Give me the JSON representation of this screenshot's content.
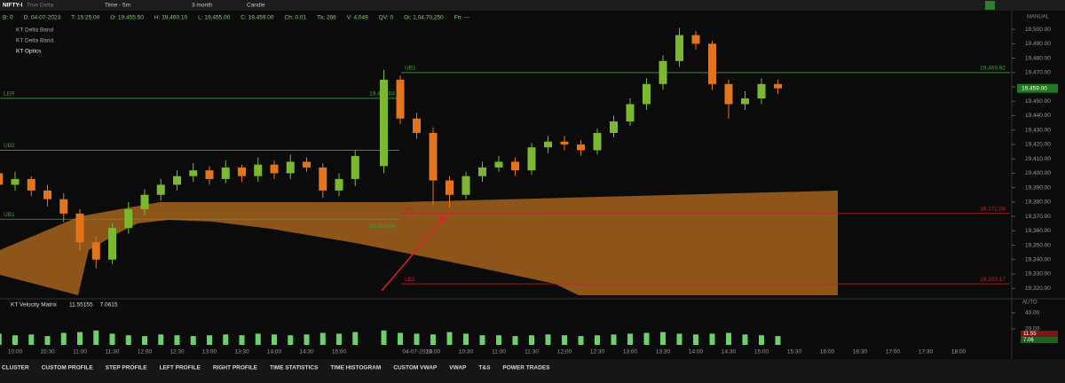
{
  "toolbar": {
    "symbol": "NIFTY-I",
    "sub": "True Delta",
    "timeframe": "Time - 5m",
    "range": "3 month",
    "style": "Candle"
  },
  "info_bar": [
    "B: 0",
    "D: 04-07-2023",
    "T: 15:25:00",
    "O: 19,455.50",
    "H: 19,460.10",
    "L: 19,455.00",
    "C: 19,459.00",
    "Ch: 0.01",
    "Tk: 266",
    "V: 4,049",
    "QV: 0",
    "Oi: 1,04,70,250",
    "Fn: ---"
  ],
  "indicators": [
    "KT Delta Band",
    "KT Delta Band",
    "KT Optics"
  ],
  "scale_mode": "MANUAL",
  "sub_scale_mode": "AUTO",
  "tabs": [
    "CLUSTER",
    "CUSTOM PROFILE",
    "STEP PROFILE",
    "LEFT PROFILE",
    "RIGHT PROFILE",
    "TIME STATISTICS",
    "TIME HISTOGRAM",
    "CUSTOM VWAP",
    "VWAP",
    "T&S",
    "POWER TRADES"
  ],
  "chart_data": {
    "type": "candlestick",
    "up_color": "#7cb82f",
    "down_color": "#e2741d",
    "ylim": [
      19314,
      19513
    ],
    "yticks": [
      {
        "value": 19320,
        "label": "19,320.00"
      },
      {
        "value": 19330,
        "label": "19,330.00"
      },
      {
        "value": 19340,
        "label": "19,340.00"
      },
      {
        "value": 19350,
        "label": "19,350.00"
      },
      {
        "value": 19360,
        "label": "19,360.00"
      },
      {
        "value": 19370,
        "label": "19,370.00"
      },
      {
        "value": 19380,
        "label": "19,380.00"
      },
      {
        "value": 19390,
        "label": "19,390.00"
      },
      {
        "value": 19400,
        "label": "19,400.00"
      },
      {
        "value": 19410,
        "label": "19,410.00"
      },
      {
        "value": 19420,
        "label": "19,420.00"
      },
      {
        "value": 19430,
        "label": "19,430.00"
      },
      {
        "value": 19440,
        "label": "19,440.00"
      },
      {
        "value": 19450,
        "label": "19,450.00"
      },
      {
        "value": 19460,
        "label": "19,460.00"
      },
      {
        "value": 19470,
        "label": "19,470.00"
      },
      {
        "value": 19480,
        "label": "19,480.00"
      },
      {
        "value": 19490,
        "label": "19,490.00"
      },
      {
        "value": 19500,
        "label": "19,500.00"
      }
    ],
    "xticks": [
      [
        "10:00",
        "10:30",
        "11:00",
        "11:30",
        "12:00",
        "12:30",
        "13:00",
        "13:30",
        "14:00",
        "14:30",
        "15:00"
      ],
      [
        "04-07-2023",
        "10:00",
        "10:30",
        "11:00",
        "11:30",
        "12:00",
        "12:30",
        "13:00",
        "13:30",
        "14:00",
        "14:30",
        "15:00",
        "15:30",
        "16:00",
        "16:30",
        "17:00",
        "17:30",
        "18:00"
      ]
    ],
    "last_price": {
      "value": 19459,
      "label": "19,459.00"
    },
    "sessions": [
      {
        "x": [
          "09:45",
          "10:00",
          "10:15",
          "10:30",
          "10:45",
          "11:00",
          "11:15",
          "11:30",
          "11:45",
          "12:00",
          "12:15",
          "12:30",
          "12:45",
          "13:00",
          "13:15",
          "13:30",
          "13:45",
          "14:00",
          "14:15",
          "14:30",
          "14:45",
          "15:00",
          "15:15"
        ],
        "open": [
          19400,
          19392,
          19396,
          19388,
          19382,
          19372,
          19352,
          19340,
          19362,
          19375,
          19385,
          19392,
          19398,
          19402,
          19396,
          19404,
          19398,
          19406,
          19400,
          19408,
          19404,
          19388,
          19396
        ],
        "high": [
          19408,
          19401,
          19398,
          19392,
          19386,
          19375,
          19356,
          19365,
          19380,
          19389,
          19396,
          19402,
          19407,
          19405,
          19409,
          19406,
          19411,
          19409,
          19413,
          19411,
          19407,
          19400,
          19416
        ],
        "low": [
          19386,
          19388,
          19384,
          19377,
          19366,
          19346,
          19334,
          19337,
          19358,
          19371,
          19381,
          19388,
          19394,
          19392,
          19393,
          19394,
          19394,
          19396,
          19396,
          19401,
          19383,
          19384,
          19391
        ],
        "close": [
          19392,
          19396,
          19388,
          19382,
          19372,
          19352,
          19340,
          19362,
          19375,
          19385,
          19392,
          19398,
          19402,
          19396,
          19404,
          19398,
          19406,
          19400,
          19408,
          19404,
          19388,
          19396,
          19412
        ],
        "velocity": [
          14,
          12,
          13,
          11,
          15,
          16,
          18,
          14,
          12,
          11,
          13,
          12,
          11,
          12,
          13,
          12,
          14,
          13,
          12,
          13,
          15,
          14,
          16
        ],
        "levels": [
          {
            "name": "LER",
            "value": 19452.04,
            "label": "19,452.04",
            "color": "#3f9e3f"
          },
          {
            "name": "UB2",
            "value": 19416,
            "color": "#3f9e3f"
          },
          {
            "name": "UB1",
            "value": 19368.04,
            "label": "19,368.04",
            "color": "#3f9e3f"
          }
        ]
      },
      {
        "x": [
          "09:15",
          "09:30",
          "09:45",
          "10:00",
          "10:15",
          "10:30",
          "10:45",
          "11:00",
          "11:15",
          "11:30",
          "11:45",
          "12:00",
          "12:15",
          "12:30",
          "12:45",
          "13:00",
          "13:15",
          "13:30",
          "13:45",
          "14:00",
          "14:15",
          "14:30",
          "14:45",
          "15:00",
          "15:15"
        ],
        "open": [
          19405,
          19465,
          19438,
          19428,
          19395,
          19385,
          19398,
          19404,
          19408,
          19402,
          19418,
          19422,
          19420,
          19416,
          19428,
          19436,
          19448,
          19462,
          19478,
          19496,
          19490,
          19462,
          19448,
          19452,
          19462
        ],
        "high": [
          19472,
          19468,
          19442,
          19432,
          19398,
          19401,
          19408,
          19412,
          19411,
          19421,
          19426,
          19426,
          19423,
          19431,
          19440,
          19452,
          19466,
          19482,
          19501,
          19499,
          19492,
          19465,
          19457,
          19466,
          19465
        ],
        "low": [
          19400,
          19434,
          19424,
          19378,
          19376,
          19382,
          19394,
          19401,
          19398,
          19399,
          19414,
          19416,
          19412,
          19413,
          19425,
          19433,
          19444,
          19458,
          19474,
          19486,
          19458,
          19438,
          19444,
          19448,
          19455
        ],
        "close": [
          19465,
          19438,
          19428,
          19395,
          19385,
          19398,
          19404,
          19408,
          19402,
          19418,
          19422,
          19420,
          19416,
          19428,
          19436,
          19448,
          19462,
          19478,
          19496,
          19490,
          19462,
          19448,
          19452,
          19462,
          19459
        ],
        "velocity": [
          18,
          15,
          14,
          13,
          16,
          14,
          12,
          12,
          11,
          12,
          13,
          12,
          11,
          12,
          13,
          14,
          15,
          16,
          14,
          13,
          14,
          15,
          13,
          12,
          11
        ],
        "levels": [
          {
            "name": "UB1",
            "value": 19469.92,
            "label": "19,469.92",
            "color": "#3f9e3f"
          },
          {
            "name": "LB1",
            "value": 19372.08,
            "label": "19,372.08",
            "color": "#c0262b"
          },
          {
            "name": "LB2",
            "value": 19323.17,
            "label": "19,323.17",
            "color": "#c0262b"
          }
        ]
      }
    ],
    "velocity_panel": {
      "name": "KT Velocity Matrix",
      "values": [
        11.55155,
        7.0615
      ],
      "badges": [
        "11.55",
        "7.06"
      ],
      "color": "#6fcf6f",
      "ylim": [
        0,
        51
      ],
      "yticks": [
        {
          "value": 20,
          "label": "20.00"
        },
        {
          "value": 40,
          "label": "40.00"
        }
      ]
    }
  }
}
